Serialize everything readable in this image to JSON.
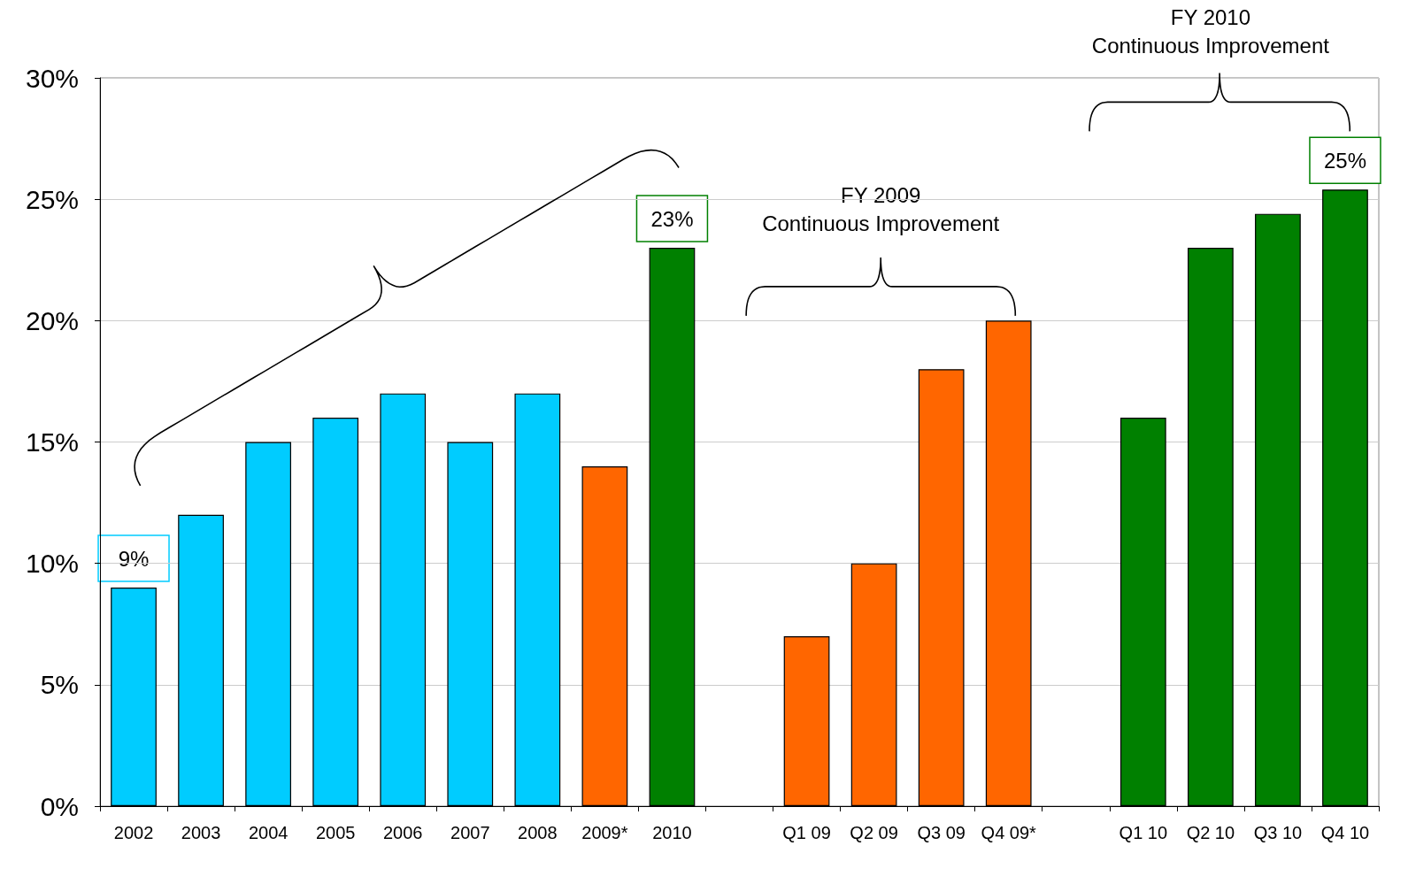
{
  "chart_data": {
    "type": "bar",
    "categories": [
      "2002",
      "2003",
      "2004",
      "2005",
      "2006",
      "2007",
      "2008",
      "2009*",
      "2010",
      null,
      "Q1 09",
      "Q2 09",
      "Q3 09",
      "Q4 09*",
      null,
      "Q1 10",
      "Q2 10",
      "Q3 10",
      "Q4 10"
    ],
    "values": [
      9,
      12,
      15,
      16,
      17,
      15,
      17,
      14,
      23,
      null,
      7,
      10,
      18,
      20,
      null,
      16,
      23,
      24.4,
      25.4
    ],
    "colors": [
      "#00ccff",
      "#00ccff",
      "#00ccff",
      "#00ccff",
      "#00ccff",
      "#00ccff",
      "#00ccff",
      "#ff6600",
      "#008000",
      null,
      "#ff6600",
      "#ff6600",
      "#ff6600",
      "#ff6600",
      null,
      "#008000",
      "#008000",
      "#008000",
      "#008000"
    ],
    "ylim": [
      0,
      30
    ],
    "yticks": [
      {
        "value": 0,
        "label": "0%"
      },
      {
        "value": 5,
        "label": "5%"
      },
      {
        "value": 10,
        "label": "10%"
      },
      {
        "value": 15,
        "label": "15%"
      },
      {
        "value": 20,
        "label": "20%"
      },
      {
        "value": 25,
        "label": "25%"
      },
      {
        "value": 30,
        "label": "30%"
      }
    ],
    "grid": "y",
    "annotations": [
      {
        "text": "9%",
        "x": "2002",
        "y": 9
      },
      {
        "text": "23%",
        "x": "2010",
        "y": 23
      },
      {
        "text": "25%",
        "x": "Q4 10",
        "y": 25.4
      },
      "FY 2009\nContinuous Improvement",
      "FY 2010\nContinuous Improvement"
    ]
  }
}
